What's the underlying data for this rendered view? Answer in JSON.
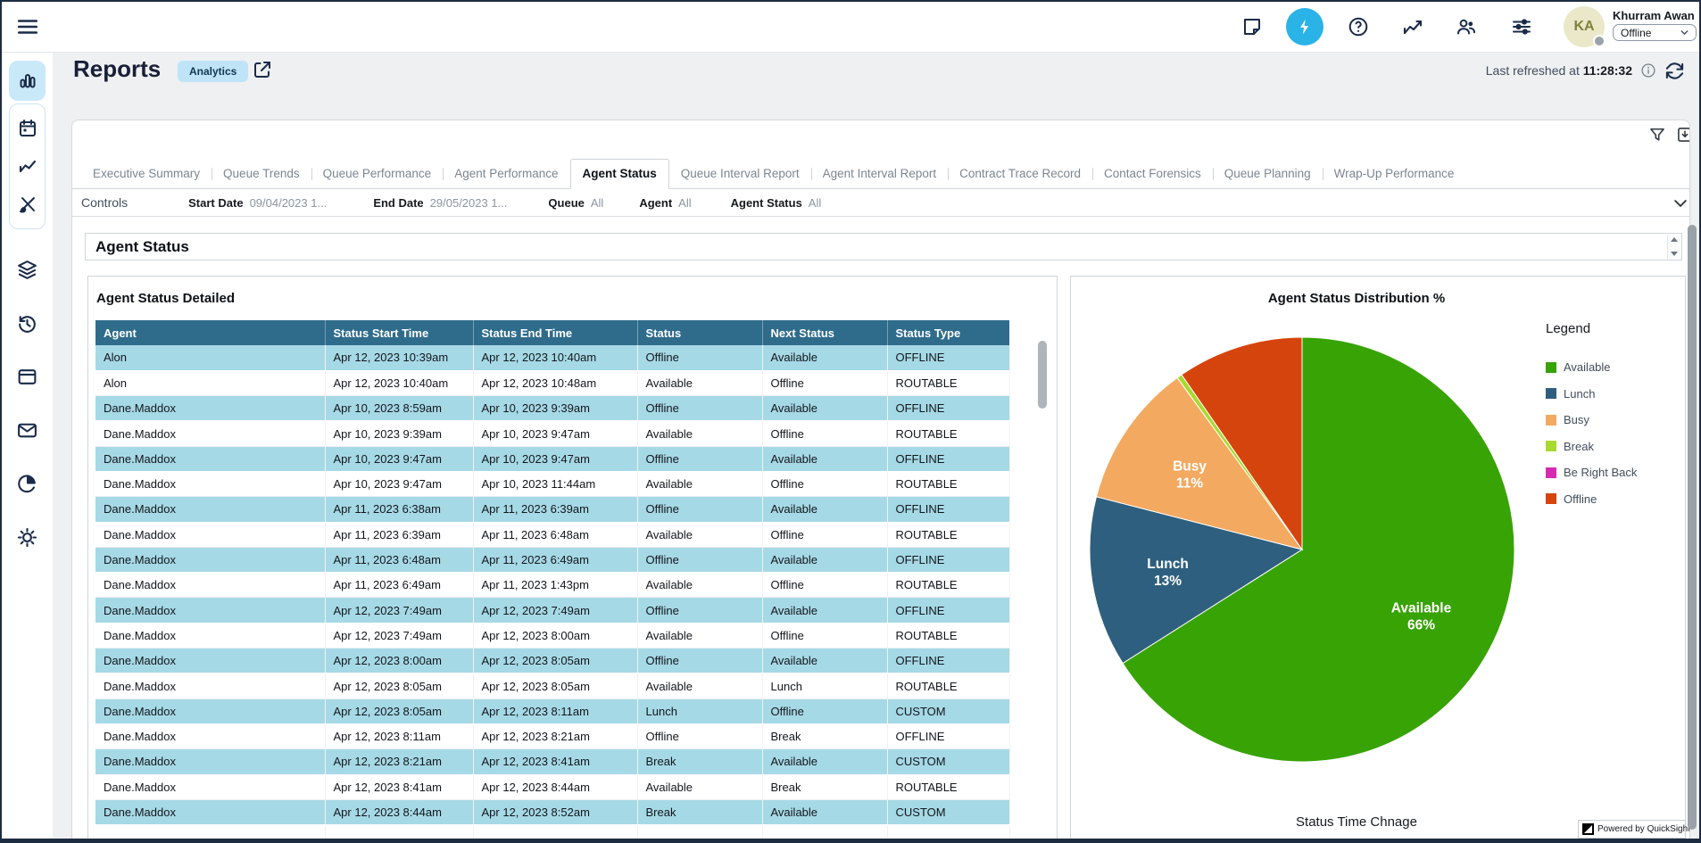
{
  "topbar": {
    "user_name": "Khurram Awan",
    "user_initials": "KA",
    "user_status": "Offline",
    "icons": [
      "hamburger-menu-icon",
      "notes-icon",
      "flash-icon",
      "help-icon",
      "metrics-icon",
      "users-icon",
      "settings-sliders-icon"
    ]
  },
  "sidebar": {
    "icons": [
      "bar-chart-icon",
      "calendar-icon",
      "trend-icon",
      "design-icon",
      "layers-icon",
      "history-icon",
      "window-icon",
      "mail-icon",
      "pie-chart-icon",
      "gear-icon"
    ],
    "active": "bar-chart-icon"
  },
  "header": {
    "title": "Reports",
    "badge": "Analytics",
    "last_refreshed_label": "Last refreshed at",
    "last_refreshed_time": "11:28:32"
  },
  "tabs": {
    "items": [
      "Executive Summary",
      "Queue Trends",
      "Queue Performance",
      "Agent Performance",
      "Agent Status",
      "Queue Interval Report",
      "Agent Interval Report",
      "Contract Trace Record",
      "Contact Forensics",
      "Queue Planning",
      "Wrap-Up Performance"
    ],
    "active": "Agent Status"
  },
  "controls": {
    "label": "Controls",
    "filters": [
      {
        "label": "Start Date",
        "value": "09/04/2023 1..."
      },
      {
        "label": "End Date",
        "value": "29/05/2023 1..."
      },
      {
        "label": "Queue",
        "value": "All"
      },
      {
        "label": "Agent",
        "value": "All"
      },
      {
        "label": "Agent Status",
        "value": "All"
      }
    ]
  },
  "section": {
    "title": "Agent Status"
  },
  "table": {
    "title": "Agent Status Detailed",
    "columns": [
      "Agent",
      "Status Start Time",
      "Status End Time",
      "Status",
      "Next Status",
      "Status Type"
    ],
    "rows": [
      [
        "Alon",
        "Apr 12, 2023 10:39am",
        "Apr 12, 2023 10:40am",
        "Offline",
        "Available",
        "OFFLINE"
      ],
      [
        "Alon",
        "Apr 12, 2023 10:40am",
        "Apr 12, 2023 10:48am",
        "Available",
        "Offline",
        "ROUTABLE"
      ],
      [
        "Dane.Maddox",
        "Apr 10, 2023 8:59am",
        "Apr 10, 2023 9:39am",
        "Offline",
        "Available",
        "OFFLINE"
      ],
      [
        "Dane.Maddox",
        "Apr 10, 2023 9:39am",
        "Apr 10, 2023 9:47am",
        "Available",
        "Offline",
        "ROUTABLE"
      ],
      [
        "Dane.Maddox",
        "Apr 10, 2023 9:47am",
        "Apr 10, 2023 9:47am",
        "Offline",
        "Available",
        "OFFLINE"
      ],
      [
        "Dane.Maddox",
        "Apr 10, 2023 9:47am",
        "Apr 10, 2023 11:44am",
        "Available",
        "Offline",
        "ROUTABLE"
      ],
      [
        "Dane.Maddox",
        "Apr 11, 2023 6:38am",
        "Apr 11, 2023 6:39am",
        "Offline",
        "Available",
        "OFFLINE"
      ],
      [
        "Dane.Maddox",
        "Apr 11, 2023 6:39am",
        "Apr 11, 2023 6:48am",
        "Available",
        "Offline",
        "ROUTABLE"
      ],
      [
        "Dane.Maddox",
        "Apr 11, 2023 6:48am",
        "Apr 11, 2023 6:49am",
        "Offline",
        "Available",
        "OFFLINE"
      ],
      [
        "Dane.Maddox",
        "Apr 11, 2023 6:49am",
        "Apr 11, 2023 1:43pm",
        "Available",
        "Offline",
        "ROUTABLE"
      ],
      [
        "Dane.Maddox",
        "Apr 12, 2023 7:49am",
        "Apr 12, 2023 7:49am",
        "Offline",
        "Available",
        "OFFLINE"
      ],
      [
        "Dane.Maddox",
        "Apr 12, 2023 7:49am",
        "Apr 12, 2023 8:00am",
        "Available",
        "Offline",
        "ROUTABLE"
      ],
      [
        "Dane.Maddox",
        "Apr 12, 2023 8:00am",
        "Apr 12, 2023 8:05am",
        "Offline",
        "Available",
        "OFFLINE"
      ],
      [
        "Dane.Maddox",
        "Apr 12, 2023 8:05am",
        "Apr 12, 2023 8:05am",
        "Available",
        "Lunch",
        "ROUTABLE"
      ],
      [
        "Dane.Maddox",
        "Apr 12, 2023 8:05am",
        "Apr 12, 2023 8:11am",
        "Lunch",
        "Offline",
        "CUSTOM"
      ],
      [
        "Dane.Maddox",
        "Apr 12, 2023 8:11am",
        "Apr 12, 2023 8:21am",
        "Offline",
        "Break",
        "OFFLINE"
      ],
      [
        "Dane.Maddox",
        "Apr 12, 2023 8:21am",
        "Apr 12, 2023 8:41am",
        "Break",
        "Available",
        "CUSTOM"
      ],
      [
        "Dane.Maddox",
        "Apr 12, 2023 8:41am",
        "Apr 12, 2023 8:44am",
        "Available",
        "Break",
        "ROUTABLE"
      ],
      [
        "Dane.Maddox",
        "Apr 12, 2023 8:44am",
        "Apr 12, 2023 8:52am",
        "Break",
        "Available",
        "CUSTOM"
      ]
    ]
  },
  "chart_data": {
    "type": "pie",
    "title": "Agent Status Distribution %",
    "legend_title": "Legend",
    "legend_position": "right",
    "slices": [
      {
        "label": "Available",
        "value": 66,
        "color": "#38a305",
        "show_label": true
      },
      {
        "label": "Lunch",
        "value": 13,
        "color": "#2f5f7e",
        "show_label": true
      },
      {
        "label": "Busy",
        "value": 11,
        "color": "#f3a960",
        "show_label": true
      },
      {
        "label": "Break",
        "value": 0.4,
        "color": "#a8d92e",
        "show_label": false
      },
      {
        "label": "Be Right Back",
        "value": 0,
        "color": "#d62bb0",
        "show_label": false
      },
      {
        "label": "Offline",
        "value": 9.6,
        "color": "#d6440d",
        "show_label": false
      }
    ],
    "footer": "Status Time Chnage"
  },
  "quicksight": {
    "text": "Powered by QuickSight"
  },
  "colors": {
    "accent_blue": "#29b3e6",
    "table_header": "#2f6c8c",
    "table_stripe": "#a6d9e6",
    "dark_navy": "#1e2c42",
    "page_bg": "#eef0f2"
  }
}
